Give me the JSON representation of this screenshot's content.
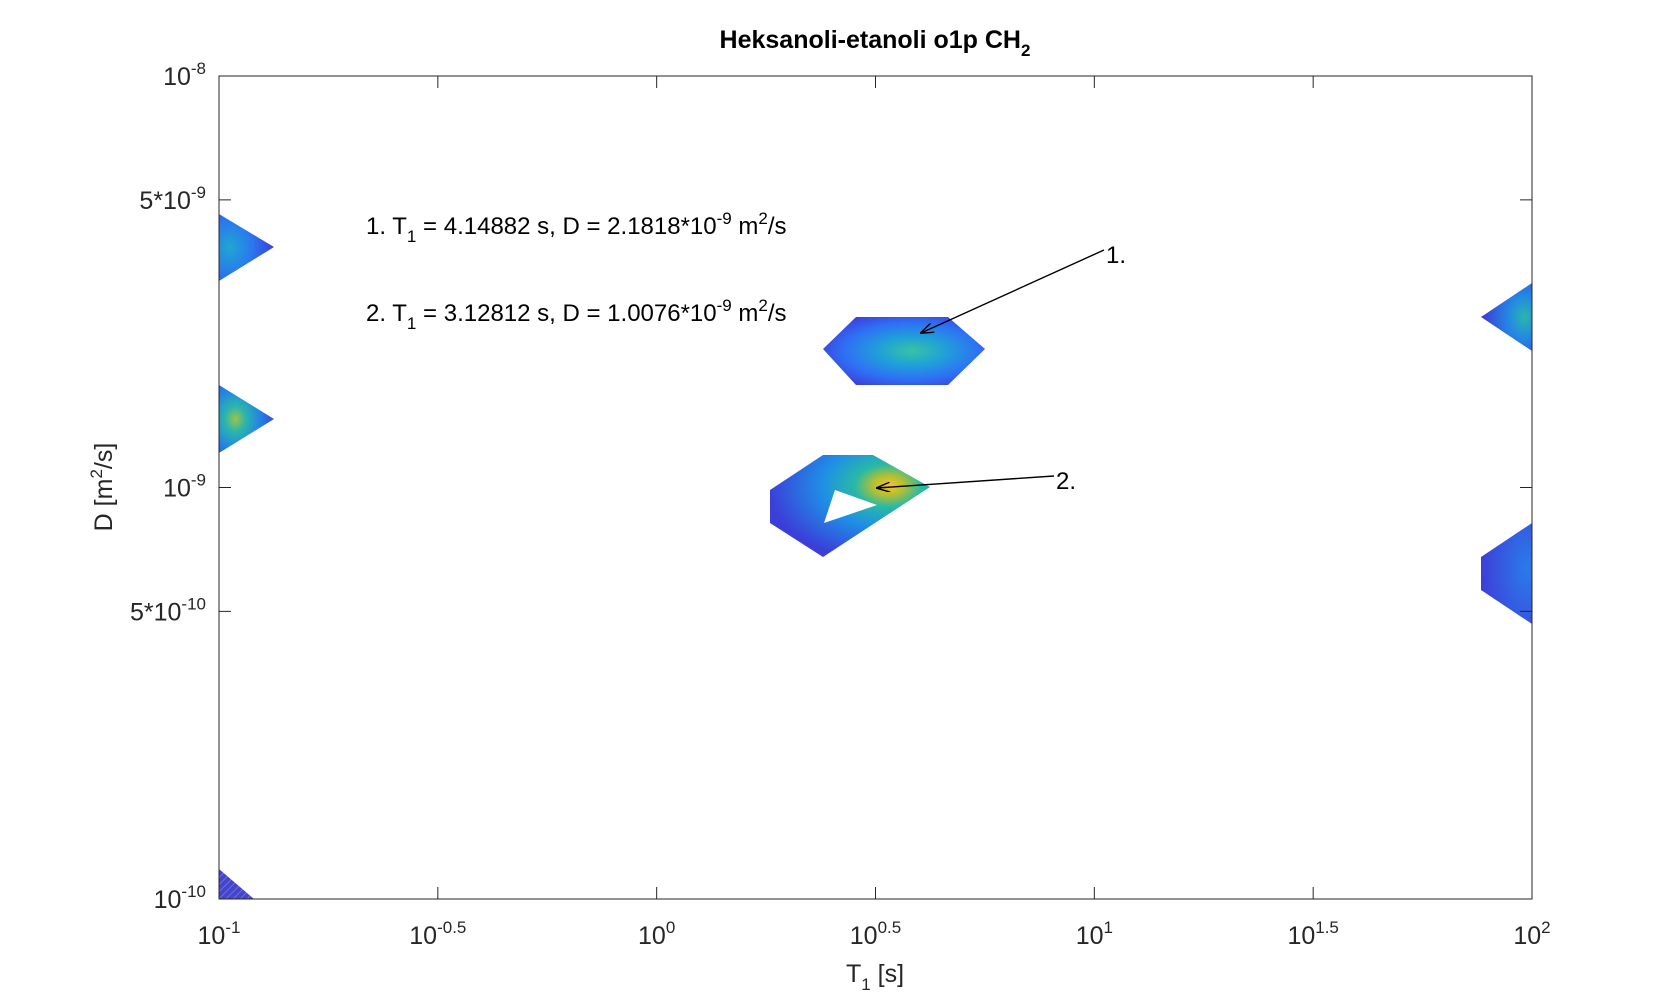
{
  "chart_data": {
    "type": "contour",
    "title": {
      "main": "Heksanoli-etanoli o1p CH",
      "sub": "2"
    },
    "xlabel": {
      "main": "T",
      "sub": "1",
      "rest": " [s]"
    },
    "ylabel": {
      "main": "D [m",
      "sup": "2",
      "rest": "/s]"
    },
    "x_scale": "log",
    "y_scale": "log",
    "xlim": [
      0.1,
      100
    ],
    "ylim": [
      1e-10,
      1e-08
    ],
    "x_ticks": [
      {
        "value": 0.1,
        "base": "10",
        "exp": "-1"
      },
      {
        "value": 0.316228,
        "base": "10",
        "exp": "-0.5"
      },
      {
        "value": 1,
        "base": "10",
        "exp": "0"
      },
      {
        "value": 3.16228,
        "base": "10",
        "exp": "0.5"
      },
      {
        "value": 10,
        "base": "10",
        "exp": "1"
      },
      {
        "value": 31.6228,
        "base": "10",
        "exp": "1.5"
      },
      {
        "value": 100,
        "base": "10",
        "exp": "2"
      }
    ],
    "y_ticks": [
      {
        "value": 1e-10,
        "base": "10",
        "exp": "-10"
      },
      {
        "value": 5e-10,
        "base": "5*10",
        "exp": "-10"
      },
      {
        "value": 1e-09,
        "base": "10",
        "exp": "-9"
      },
      {
        "value": 5e-09,
        "base": "5*10",
        "exp": "-9"
      },
      {
        "value": 1e-08,
        "base": "10",
        "exp": "-8"
      }
    ],
    "grid": false,
    "colormap": "parula",
    "peaks": [
      {
        "T1": 4.14882,
        "D": 2.1818e-09
      },
      {
        "T1": 3.12812,
        "D": 1.0076e-09
      }
    ],
    "annotations": [
      {
        "label": "1.",
        "lines": [
          {
            "prefix": "1. T",
            "sub": "1",
            "mid": " = 4.14882 s, D = 2.1818*10",
            "sup": "-9",
            "mid2": " m",
            "sup2": "2",
            "end": "/s"
          }
        ]
      },
      {
        "label": "2.",
        "lines": [
          {
            "prefix": "2. T",
            "sub": "1",
            "mid": " = 3.12812 s, D = 1.0076*10",
            "sup": "-9",
            "mid2": " m",
            "sup2": "2",
            "end": "/s"
          }
        ]
      }
    ]
  }
}
